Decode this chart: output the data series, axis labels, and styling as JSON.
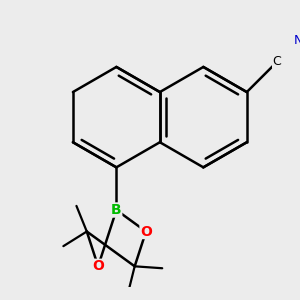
{
  "background_color": "#ececec",
  "atom_colors": {
    "C": "#000000",
    "N": "#0000cc",
    "B": "#00bb00",
    "O": "#ff0000"
  },
  "bond_color": "#000000",
  "bond_width": 1.8,
  "figsize": [
    3.0,
    3.0
  ],
  "dpi": 100,
  "scale": 0.55,
  "ox": 0.42,
  "oy": 0.62
}
